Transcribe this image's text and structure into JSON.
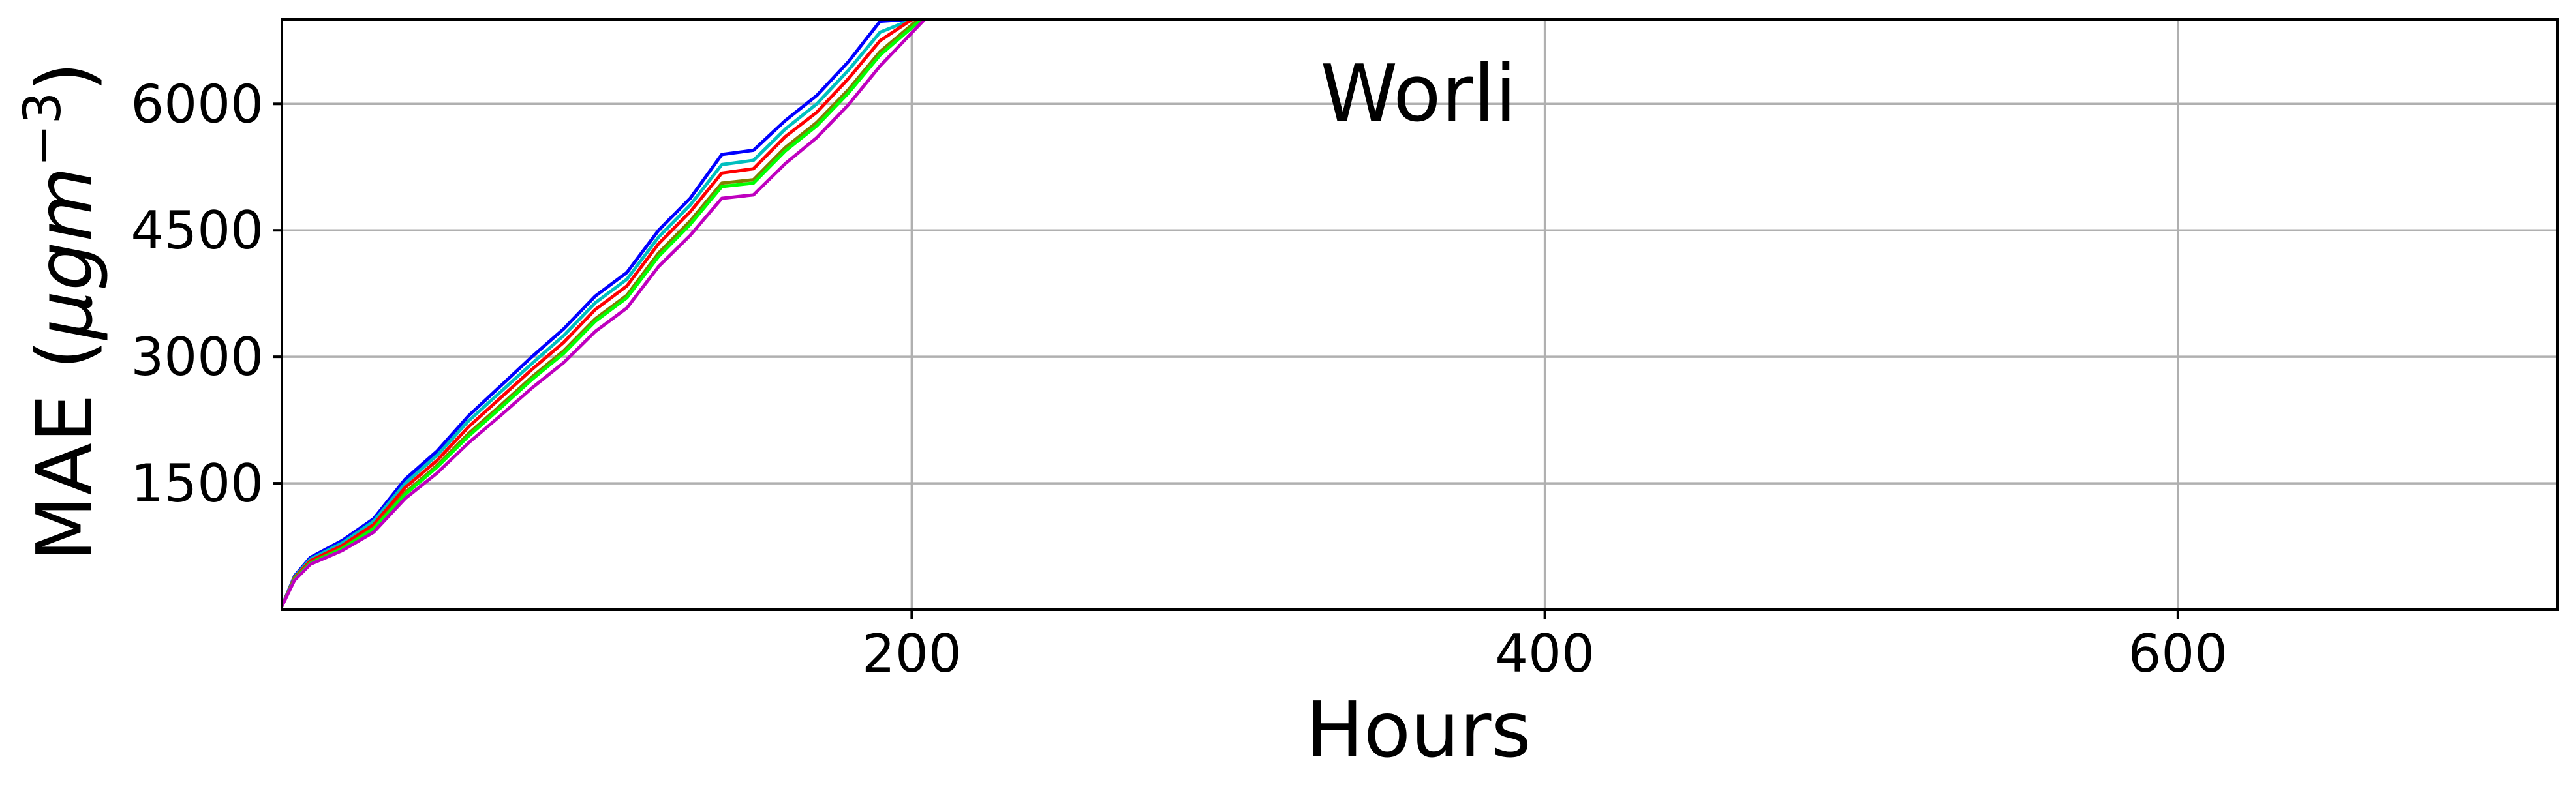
{
  "chart_data": {
    "type": "line",
    "title": "",
    "annotation": "Worli",
    "xlabel": "Hours",
    "ylabel": "MAE (μgm⁻³)",
    "ylabel_parts": {
      "main": "MAE (",
      "mu": "μgm",
      "sup": "−3",
      "close": ")"
    },
    "xlim": [
      1,
      720
    ],
    "ylim": [
      0,
      7000
    ],
    "xticks": [
      200,
      400,
      600
    ],
    "yticks": [
      1500,
      3000,
      4500,
      6000
    ],
    "xtick_labels": [
      "200",
      "400",
      "600"
    ],
    "ytick_labels": [
      "1500",
      "3000",
      "4500",
      "6000"
    ],
    "grid": true,
    "legend": "none",
    "series": [
      {
        "color": "#0000ff",
        "x": [
          1,
          5,
          10,
          20,
          30,
          40,
          50,
          60,
          70,
          80,
          90,
          100,
          110,
          120,
          130,
          140,
          150,
          160,
          170,
          180,
          190,
          198
        ],
        "y": [
          40,
          400,
          620,
          820,
          1080,
          1550,
          1880,
          2300,
          2650,
          3000,
          3330,
          3720,
          4000,
          4500,
          4880,
          5400,
          5450,
          5800,
          6100,
          6500,
          6980,
          7000
        ]
      },
      {
        "color": "#00bfbf",
        "x": [
          1,
          5,
          10,
          20,
          30,
          40,
          50,
          60,
          70,
          80,
          90,
          100,
          110,
          120,
          130,
          140,
          150,
          160,
          170,
          180,
          190,
          200
        ],
        "y": [
          40,
          390,
          600,
          790,
          1050,
          1500,
          1830,
          2240,
          2580,
          2920,
          3250,
          3640,
          3920,
          4420,
          4800,
          5280,
          5330,
          5700,
          6000,
          6400,
          6850,
          7000
        ]
      },
      {
        "color": "#ff0000",
        "x": [
          1,
          5,
          10,
          20,
          30,
          40,
          50,
          60,
          70,
          80,
          90,
          100,
          110,
          120,
          130,
          140,
          150,
          160,
          170,
          180,
          190,
          200
        ],
        "y": [
          40,
          380,
          580,
          760,
          1010,
          1450,
          1770,
          2170,
          2510,
          2850,
          3170,
          3560,
          3840,
          4340,
          4720,
          5180,
          5230,
          5610,
          5900,
          6300,
          6750,
          7000
        ]
      },
      {
        "color": "#808000",
        "x": [
          1,
          5,
          10,
          20,
          30,
          40,
          50,
          60,
          70,
          80,
          90,
          100,
          110,
          120,
          130,
          140,
          150,
          160,
          170,
          180,
          190,
          202
        ],
        "y": [
          40,
          370,
          560,
          730,
          970,
          1390,
          1710,
          2090,
          2420,
          2760,
          3070,
          3450,
          3730,
          4230,
          4610,
          5060,
          5100,
          5480,
          5780,
          6170,
          6620,
          7000
        ]
      },
      {
        "color": "#00ff00",
        "x": [
          1,
          5,
          10,
          20,
          30,
          40,
          50,
          60,
          70,
          80,
          90,
          100,
          110,
          120,
          130,
          140,
          150,
          160,
          170,
          180,
          190,
          203
        ],
        "y": [
          40,
          360,
          550,
          720,
          960,
          1370,
          1690,
          2060,
          2390,
          2730,
          3040,
          3420,
          3700,
          4190,
          4570,
          5020,
          5060,
          5440,
          5740,
          6130,
          6580,
          7000
        ]
      },
      {
        "color": "#bf00bf",
        "x": [
          1,
          5,
          10,
          20,
          30,
          40,
          50,
          60,
          70,
          80,
          90,
          100,
          110,
          120,
          130,
          140,
          150,
          160,
          170,
          180,
          190,
          204
        ],
        "y": [
          40,
          350,
          540,
          700,
          920,
          1320,
          1620,
          1980,
          2300,
          2630,
          2930,
          3300,
          3580,
          4070,
          4440,
          4880,
          4920,
          5290,
          5600,
          5990,
          6450,
          7000
        ]
      }
    ]
  }
}
